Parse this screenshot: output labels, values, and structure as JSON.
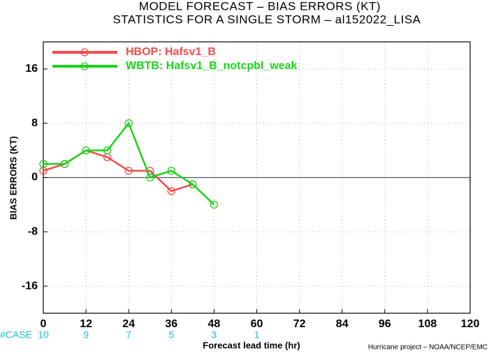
{
  "chart_data": {
    "type": "line",
    "title": "MODEL FORECAST – BIAS ERRORS (KT)",
    "subtitle": "STATISTICS FOR A SINGLE STORM – al152022_LISA",
    "y_label": "BIAS ERRORS (KT)",
    "x_label": "Forecast lead time (hr)",
    "footer": "Hurricane project – NOAA/NCEP/EMC",
    "x": [
      0,
      6,
      12,
      18,
      24,
      30,
      36,
      42,
      48
    ],
    "series": [
      {
        "name": "HBOP: Hafsv1_B",
        "color": "#f44b4b",
        "values": [
          1,
          2,
          4,
          3,
          1,
          1,
          -2,
          -1,
          null
        ]
      },
      {
        "name": "WBTB: Hafsv1_B_notcpbl_weak",
        "color": "#1ad31a",
        "values": [
          2,
          2,
          4,
          4,
          8,
          0,
          1,
          -1,
          -4
        ]
      }
    ],
    "xlim": [
      0,
      120
    ],
    "xticks": [
      0,
      12,
      24,
      36,
      48,
      60,
      72,
      84,
      96,
      108,
      120
    ],
    "ylim": [
      -20,
      20
    ],
    "yticks": [
      -16,
      -8,
      0,
      8,
      16
    ],
    "grid": true,
    "legend": "upper-left",
    "case_counts": {
      "label": "#CASE",
      "x": [
        0,
        12,
        24,
        36,
        48,
        60
      ],
      "values": [
        10,
        9,
        7,
        5,
        3,
        1
      ]
    }
  }
}
